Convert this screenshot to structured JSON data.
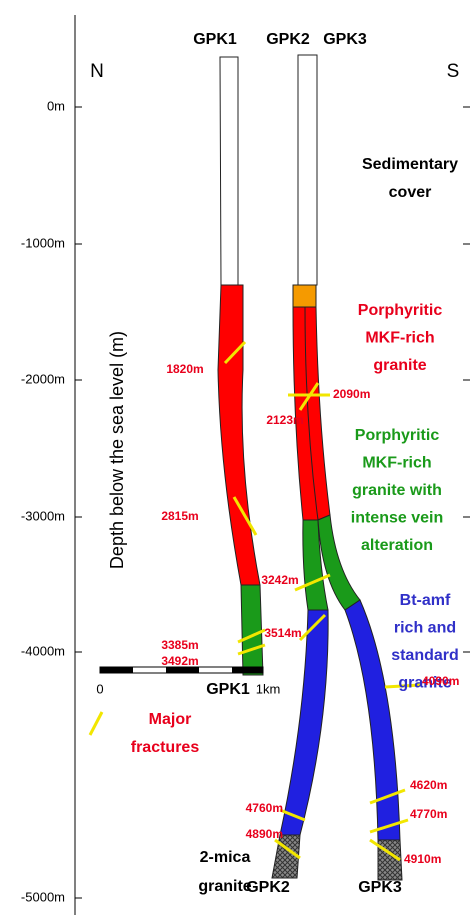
{
  "header": {
    "wells": [
      "GPK1",
      "GPK2",
      "GPK3"
    ]
  },
  "compass": {
    "north": "N",
    "south": "S"
  },
  "axis": {
    "title": "Depth below the sea level (m)",
    "ticks": [
      "0m",
      "-1000m",
      "-2000m",
      "-3000m",
      "-4000m",
      "-5000m"
    ]
  },
  "units": [
    {
      "lines": [
        "Sedimentary",
        "cover"
      ]
    },
    {
      "lines": [
        "Porphyritic",
        "MKF-rich",
        "granite"
      ]
    },
    {
      "lines": [
        "Porphyritic",
        "MKF-rich",
        "granite with",
        "intense vein",
        "alteration"
      ]
    },
    {
      "lines": [
        "Bt-amf",
        "rich and",
        "standard",
        "granite"
      ]
    },
    {
      "lines": [
        "2-mica",
        "granite"
      ]
    }
  ],
  "fractures": [
    "1820m",
    "2815m",
    "3385m",
    "3492m",
    "2090m",
    "2123m",
    "3242m",
    "3514m",
    "4090m",
    "4620m",
    "4770m",
    "4910m",
    "4760m",
    "4890m"
  ],
  "bottom_labels": [
    "GPK1",
    "GPK2",
    "GPK3"
  ],
  "scale": {
    "start": "0",
    "end": "1km"
  },
  "legend": {
    "lines": [
      "Major",
      "fractures"
    ]
  }
}
